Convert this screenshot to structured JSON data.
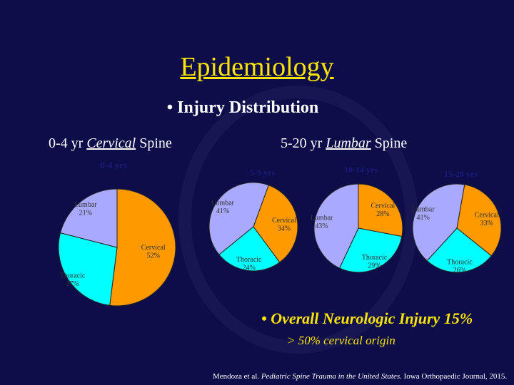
{
  "slide": {
    "title": "Epidemiology",
    "bullet": "• Injury Distribution",
    "left_label_prefix": "0-4 yr ",
    "left_label_em": "Cervical",
    "left_label_suffix": " Spine",
    "right_label_prefix": "5-20 yr ",
    "right_label_em": "Lumbar",
    "right_label_suffix": " Spine",
    "neuro": "• Overall Neurologic Injury 15%",
    "sub": "> 50% cervical origin",
    "cite_prefix": "Mendoza et al. ",
    "cite_em": "Pediatric Spine Trauma in the United States",
    "cite_suffix": ". Iowa Orthopaedic Journal, 2015."
  },
  "colors": {
    "cervical": "#ff9900",
    "lumbar": "#a9a9ff",
    "thoracic": "#00ffff",
    "title": "#ffe400",
    "pie_title": "#1a1a7a"
  },
  "chart_data": [
    {
      "type": "pie",
      "title": "0-4 yrs",
      "categories": [
        "Cervical",
        "Thoracic",
        "Lumbar"
      ],
      "values": [
        52,
        27,
        21
      ],
      "labels": [
        "Cervical 52%",
        "Thoracic 27%",
        "Lumbar 21%"
      ]
    },
    {
      "type": "pie",
      "title": "5-9 yrs",
      "categories": [
        "Cervical",
        "Thoracic",
        "Lumbar"
      ],
      "values": [
        34,
        24,
        41
      ],
      "labels": [
        "Cervical 34%",
        "Thoracic 24%",
        "Lumbar 41%"
      ]
    },
    {
      "type": "pie",
      "title": "10-14 yrs",
      "categories": [
        "Cervical",
        "Thoracic",
        "Lumbar"
      ],
      "values": [
        28,
        29,
        43
      ],
      "labels": [
        "Cervical 28%",
        "Thoracic 29%",
        "Lumbar 43%"
      ]
    },
    {
      "type": "pie",
      "title": "15-20 yrs",
      "categories": [
        "Cervical",
        "Thoracic",
        "Lumbar"
      ],
      "values": [
        33,
        26,
        41
      ],
      "labels": [
        "Cervical 33%",
        "Thoracic 26%",
        "Lumbar 41%"
      ]
    }
  ]
}
